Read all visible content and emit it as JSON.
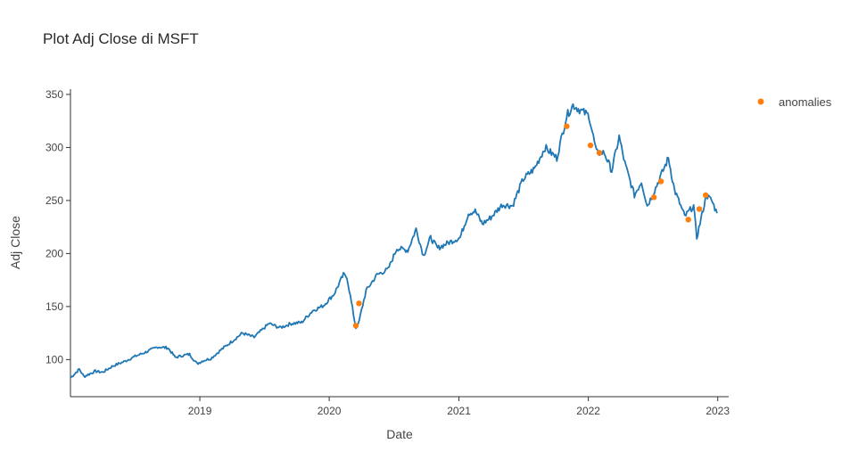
{
  "chart_data": {
    "type": "line",
    "title": "Plot Adj Close di MSFT",
    "xlabel": "Date",
    "ylabel": "Adj Close",
    "x_range": [
      "2018-01-01",
      "2023-02-01"
    ],
    "ylim": [
      65,
      355
    ],
    "x_ticks": [
      {
        "label": "2019",
        "date": "2019-01-01"
      },
      {
        "label": "2020",
        "date": "2020-01-01"
      },
      {
        "label": "2021",
        "date": "2021-01-01"
      },
      {
        "label": "2022",
        "date": "2022-01-01"
      },
      {
        "label": "2023",
        "date": "2023-01-01"
      }
    ],
    "y_ticks": [
      100,
      150,
      200,
      250,
      300,
      350
    ],
    "grid": false,
    "legend": {
      "position": "top-right",
      "entries": [
        "anomalies"
      ]
    },
    "colors": {
      "line": "#1f77b4",
      "anomalies": "#ff7f0e"
    },
    "series": [
      {
        "name": "",
        "x": [
          "2018-01-02",
          "2018-01-26",
          "2018-02-08",
          "2018-03-12",
          "2018-04-02",
          "2018-05-01",
          "2018-06-01",
          "2018-07-02",
          "2018-08-01",
          "2018-09-04",
          "2018-10-03",
          "2018-10-24",
          "2018-11-15",
          "2018-12-03",
          "2018-12-24",
          "2019-01-10",
          "2019-02-01",
          "2019-03-01",
          "2019-04-01",
          "2019-05-01",
          "2019-06-03",
          "2019-07-15",
          "2019-08-15",
          "2019-09-16",
          "2019-10-15",
          "2019-11-15",
          "2019-12-16",
          "2020-01-15",
          "2020-02-10",
          "2020-02-20",
          "2020-03-16",
          "2020-03-23",
          "2020-04-14",
          "2020-05-15",
          "2020-06-15",
          "2020-07-10",
          "2020-08-10",
          "2020-09-02",
          "2020-09-23",
          "2020-10-13",
          "2020-11-02",
          "2020-12-01",
          "2021-01-04",
          "2021-01-28",
          "2021-02-16",
          "2021-03-08",
          "2021-04-01",
          "2021-05-03",
          "2021-06-01",
          "2021-07-01",
          "2021-08-02",
          "2021-09-01",
          "2021-10-04",
          "2021-11-01",
          "2021-11-19",
          "2021-12-10",
          "2022-01-03",
          "2022-01-24",
          "2022-02-15",
          "2022-03-08",
          "2022-03-29",
          "2022-04-14",
          "2022-05-11",
          "2022-05-31",
          "2022-06-16",
          "2022-07-01",
          "2022-08-15",
          "2022-09-01",
          "2022-09-30",
          "2022-10-25",
          "2022-11-03",
          "2022-11-30",
          "2022-12-15",
          "2022-12-30"
        ],
        "y": [
          83,
          91,
          84,
          89,
          88,
          94,
          98,
          103,
          107,
          112,
          111,
          102,
          104,
          105,
          96,
          99,
          101,
          109,
          117,
          125,
          121,
          134,
          130,
          134,
          135,
          146,
          151,
          162,
          180,
          178,
          130,
          133,
          165,
          180,
          185,
          205,
          203,
          223,
          198,
          215,
          205,
          210,
          215,
          238,
          240,
          228,
          234,
          246,
          245,
          270,
          280,
          300,
          290,
          330,
          340,
          335,
          330,
          295,
          295,
          278,
          310,
          285,
          255,
          268,
          245,
          255,
          290,
          260,
          235,
          245,
          215,
          255,
          250,
          238
        ]
      }
    ],
    "anomalies": {
      "name": "anomalies",
      "x": [
        "2020-03-16",
        "2020-03-25",
        "2021-11-01",
        "2022-01-07",
        "2022-02-01",
        "2022-07-05",
        "2022-07-25",
        "2022-10-10",
        "2022-11-10",
        "2022-11-28"
      ],
      "y": [
        132,
        153,
        320,
        302,
        295,
        253,
        268,
        232,
        242,
        255
      ]
    }
  }
}
